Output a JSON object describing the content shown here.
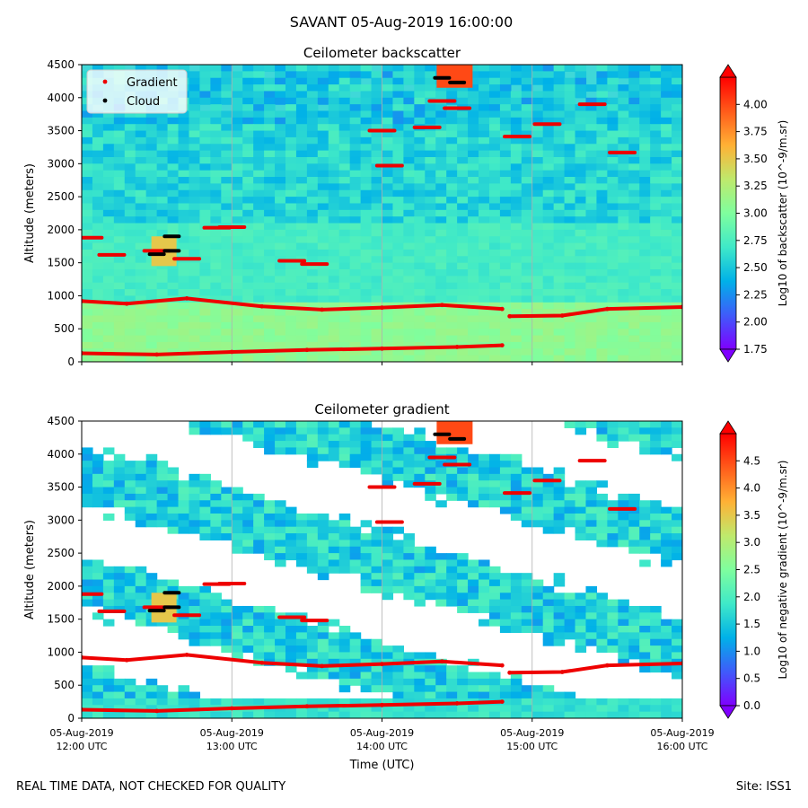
{
  "suptitle": "SAVANT 05-Aug-2019 16:00:00",
  "footer": {
    "left": "REAL TIME DATA, NOT CHECKED FOR QUALITY",
    "right": "Site: ISS1"
  },
  "colors": {
    "gradient_marker": "#ee0000",
    "cloud_marker": "#000000",
    "colormap": [
      "#7f00ff",
      "#3f5bfa",
      "#00b1e8",
      "#3fe9c8",
      "#7ffe9e",
      "#bfe96c",
      "#ffb135",
      "#ff5b1a",
      "#ff0000"
    ]
  },
  "chart_data": [
    {
      "type": "heatmap",
      "title": "Ceilometer backscatter",
      "ylabel": "Altitude (meters)",
      "xlabel": "",
      "ylim": [
        0,
        4500
      ],
      "xlim": [
        "12:00",
        "16:00"
      ],
      "yticks": [
        "0",
        "500",
        "1000",
        "1500",
        "2000",
        "2500",
        "3000",
        "3500",
        "4000",
        "4500"
      ],
      "xticks": [
        "",
        "",
        "",
        "",
        ""
      ],
      "legend": {
        "placement": "top-left",
        "entries": [
          "Gradient",
          "Cloud"
        ]
      },
      "colorbar": {
        "label": "Log10 of backscatter (10^-9/m.sr)",
        "range": [
          1.75,
          4.25
        ],
        "ticks": [
          "1.75",
          "2.00",
          "2.25",
          "2.50",
          "2.75",
          "3.00",
          "3.25",
          "3.50",
          "3.75",
          "4.00"
        ]
      },
      "series": [
        {
          "name": "Gradient (surface layer)",
          "x_hours": [
            0.0,
            0.5,
            1.0,
            1.5,
            2.0,
            2.5,
            2.8
          ],
          "altitude_m": [
            130,
            110,
            150,
            180,
            200,
            225,
            250
          ]
        },
        {
          "name": "Gradient (boundary layer)",
          "x_hours": [
            0.0,
            0.3,
            0.7,
            1.2,
            1.6,
            2.0,
            2.4,
            2.8,
            2.85,
            3.2,
            3.5,
            4.0
          ],
          "altitude_m": [
            920,
            880,
            960,
            840,
            790,
            820,
            860,
            800,
            690,
            700,
            800,
            830
          ]
        },
        {
          "name": "Gradient (aloft segments)",
          "x_hours": [
            0.05,
            0.2,
            0.5,
            0.7,
            0.9,
            1.0,
            1.4,
            1.55,
            2.0,
            2.05,
            2.3,
            2.4,
            2.5,
            2.9,
            3.1,
            3.4,
            3.6
          ],
          "altitude_m": [
            1880,
            1620,
            1680,
            1560,
            2030,
            2040,
            1530,
            1480,
            3500,
            2970,
            3550,
            3950,
            3840,
            3410,
            3600,
            3900,
            3170
          ]
        },
        {
          "name": "Cloud",
          "x_hours": [
            0.5,
            0.6,
            0.6,
            2.4,
            2.5
          ],
          "altitude_m": [
            1630,
            1680,
            1900,
            4300,
            4230
          ]
        }
      ]
    },
    {
      "type": "heatmap",
      "title": "Ceilometer gradient",
      "ylabel": "Altitude (meters)",
      "xlabel": "Time (UTC)",
      "ylim": [
        0,
        4500
      ],
      "xlim": [
        "12:00",
        "16:00"
      ],
      "yticks": [
        "0",
        "500",
        "1000",
        "1500",
        "2000",
        "2500",
        "3000",
        "3500",
        "4000",
        "4500"
      ],
      "xticks": [
        {
          "date": "05-Aug-2019",
          "time": "12:00 UTC"
        },
        {
          "date": "05-Aug-2019",
          "time": "13:00 UTC"
        },
        {
          "date": "05-Aug-2019",
          "time": "14:00 UTC"
        },
        {
          "date": "05-Aug-2019",
          "time": "15:00 UTC"
        },
        {
          "date": "05-Aug-2019",
          "time": "16:00 UTC"
        }
      ],
      "colorbar": {
        "label": "Log10 of negative gradient (10^-9/m.sr)",
        "range": [
          0,
          5
        ],
        "ticks": [
          "0.0",
          "0.5",
          "1.0",
          "1.5",
          "2.0",
          "2.5",
          "3.0",
          "3.5",
          "4.0",
          "4.5"
        ]
      },
      "series": [
        {
          "name": "Gradient (surface layer)",
          "x_hours": [
            0.0,
            0.5,
            1.0,
            1.5,
            2.0,
            2.5,
            2.8
          ],
          "altitude_m": [
            130,
            110,
            150,
            180,
            200,
            225,
            250
          ]
        },
        {
          "name": "Gradient (boundary layer)",
          "x_hours": [
            0.0,
            0.3,
            0.7,
            1.2,
            1.6,
            2.0,
            2.4,
            2.8,
            2.85,
            3.2,
            3.5,
            4.0
          ],
          "altitude_m": [
            920,
            880,
            960,
            840,
            790,
            820,
            860,
            800,
            690,
            700,
            800,
            830
          ]
        },
        {
          "name": "Gradient (aloft segments)",
          "x_hours": [
            0.05,
            0.2,
            0.5,
            0.7,
            0.9,
            1.0,
            1.4,
            1.55,
            2.0,
            2.05,
            2.3,
            2.4,
            2.5,
            2.9,
            3.1,
            3.4,
            3.6
          ],
          "altitude_m": [
            1880,
            1620,
            1680,
            1560,
            2030,
            2040,
            1530,
            1480,
            3500,
            2970,
            3550,
            3950,
            3840,
            3410,
            3600,
            3900,
            3170
          ]
        },
        {
          "name": "Cloud",
          "x_hours": [
            0.5,
            0.6,
            0.6,
            2.4,
            2.5
          ],
          "altitude_m": [
            1630,
            1680,
            1900,
            4300,
            4230
          ]
        }
      ]
    }
  ]
}
